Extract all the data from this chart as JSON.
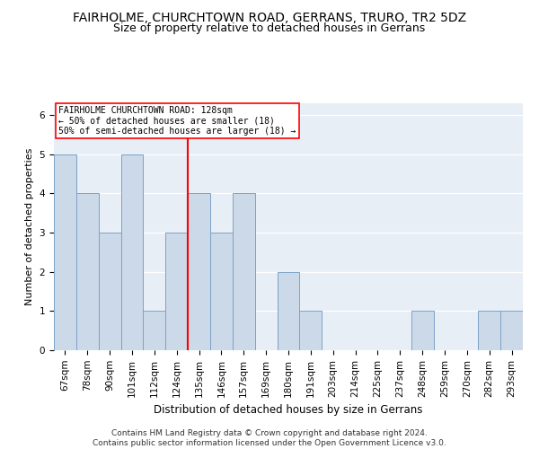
{
  "title": "FAIRHOLME, CHURCHTOWN ROAD, GERRANS, TRURO, TR2 5DZ",
  "subtitle": "Size of property relative to detached houses in Gerrans",
  "xlabel": "Distribution of detached houses by size in Gerrans",
  "ylabel": "Number of detached properties",
  "categories": [
    "67sqm",
    "78sqm",
    "90sqm",
    "101sqm",
    "112sqm",
    "124sqm",
    "135sqm",
    "146sqm",
    "157sqm",
    "169sqm",
    "180sqm",
    "191sqm",
    "203sqm",
    "214sqm",
    "225sqm",
    "237sqm",
    "248sqm",
    "259sqm",
    "270sqm",
    "282sqm",
    "293sqm"
  ],
  "values": [
    5,
    4,
    3,
    5,
    1,
    3,
    4,
    3,
    4,
    0,
    2,
    1,
    0,
    0,
    0,
    0,
    1,
    0,
    0,
    1,
    1
  ],
  "bar_color": "#ccd9e8",
  "bar_edge_color": "#7ba3c8",
  "red_line_index": 5.5,
  "annotation_line1": "FAIRHOLME CHURCHTOWN ROAD: 128sqm",
  "annotation_line2": "← 50% of detached houses are smaller (18)",
  "annotation_line3": "50% of semi-detached houses are larger (18) →",
  "ylim": [
    0,
    6.3
  ],
  "yticks": [
    0,
    1,
    2,
    3,
    4,
    5,
    6
  ],
  "footnote1": "Contains HM Land Registry data © Crown copyright and database right 2024.",
  "footnote2": "Contains public sector information licensed under the Open Government Licence v3.0.",
  "title_fontsize": 10,
  "subtitle_fontsize": 9,
  "axis_label_fontsize": 8.5,
  "ylabel_fontsize": 8,
  "tick_fontsize": 7.5,
  "footnote_fontsize": 6.5,
  "background_color": "#ffffff",
  "plot_bg_color": "#e8eef5"
}
